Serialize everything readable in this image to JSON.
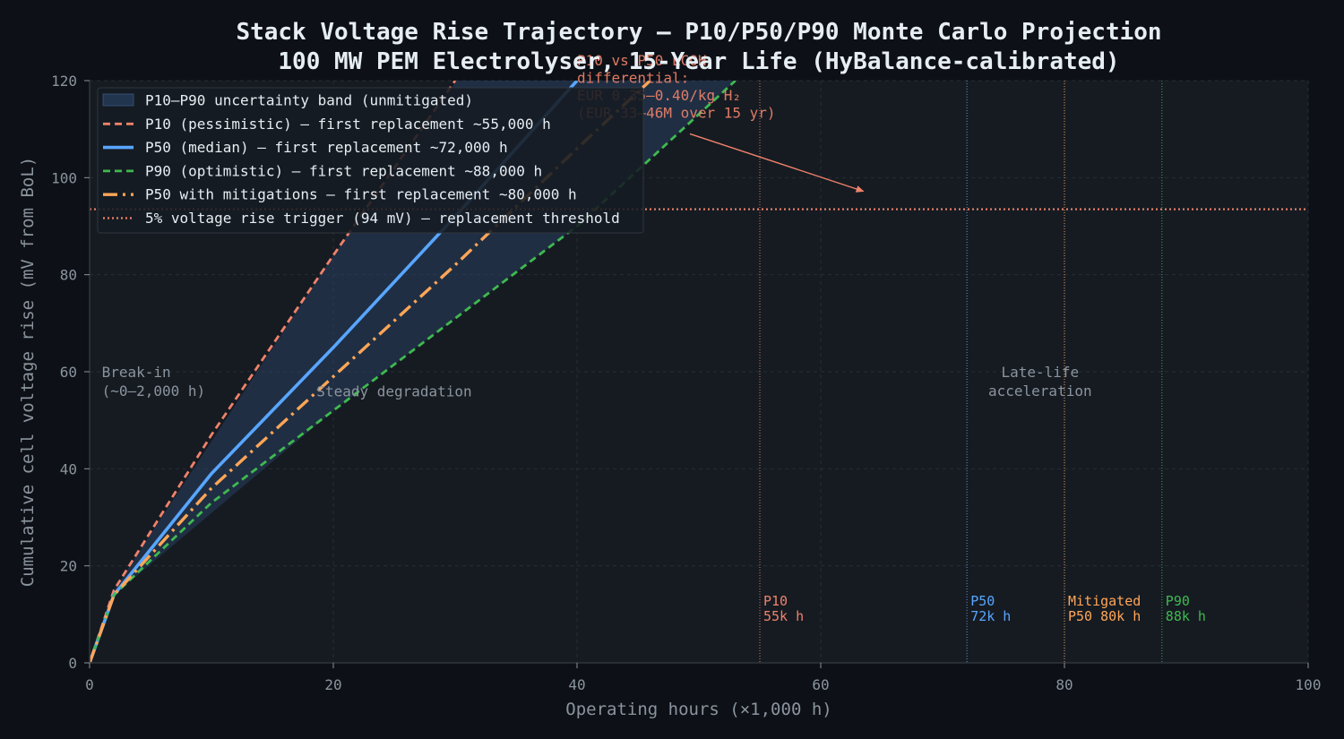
{
  "chart_data": {
    "type": "line",
    "title": "Stack Voltage Rise Trajectory — P10/P50/P90 Monte Carlo Projection",
    "subtitle": "100 MW PEM Electrolyser, 15-Year Life (HyBalance-calibrated)",
    "xlabel": "Operating hours (×1,000 h)",
    "ylabel": "Cumulative cell voltage rise (mV from BoL)",
    "xlim": [
      0,
      100
    ],
    "ylim": [
      0,
      120
    ],
    "xticks": [
      0,
      20,
      40,
      60,
      80,
      100
    ],
    "yticks": [
      0,
      20,
      40,
      60,
      80,
      100,
      120
    ],
    "grid": true,
    "legend_position": "top-left",
    "band": {
      "name": "P10–P90 uncertainty band (unmitigated)",
      "color": "#2d4a73",
      "x": [
        0,
        2,
        20,
        40,
        53,
        54
      ],
      "lower": [
        0,
        14,
        52,
        90,
        120,
        120
      ],
      "upper": [
        0,
        15,
        84,
        155,
        200,
        200
      ]
    },
    "series": [
      {
        "name": "P10 (pessimistic) — first replacement ~55,000 h",
        "color": "#f0826a",
        "dash": "8,5",
        "width": 2.8,
        "x": [
          0,
          2,
          10,
          20,
          30
        ],
        "values": [
          0,
          15,
          47,
          84,
          120
        ]
      },
      {
        "name": "P50 (median) — first replacement ~72,000 h",
        "color": "#58a6ff",
        "dash": "",
        "width": 3.6,
        "x": [
          0,
          2,
          10,
          20,
          30,
          40
        ],
        "values": [
          0,
          14,
          39,
          65,
          92,
          120
        ]
      },
      {
        "name": "P90 (optimistic) — first replacement ~88,000 h",
        "color": "#3fb950",
        "dash": "8,5",
        "width": 2.8,
        "x": [
          0,
          2,
          10,
          20,
          30,
          40,
          53
        ],
        "values": [
          0,
          14,
          33,
          52,
          71,
          90,
          120
        ]
      },
      {
        "name": "P50 with mitigations — first replacement ~80,000 h",
        "color": "#ffa657",
        "dash": "16,6,3,6",
        "width": 3.4,
        "x": [
          0,
          2,
          10,
          20,
          30,
          40,
          46
        ],
        "values": [
          0,
          14,
          36,
          59,
          82,
          106,
          120
        ]
      },
      {
        "name": "5% voltage rise trigger (94 mV) — replacement threshold",
        "color": "#f0826a",
        "dash": "2,3",
        "width": 2.2,
        "x": [
          0,
          100
        ],
        "values": [
          93.5,
          93.5
        ]
      }
    ],
    "markers": [
      {
        "x": 55,
        "label1": "P10",
        "label2": "55k h",
        "color": "#f0826a"
      },
      {
        "x": 72,
        "label1": "P50",
        "label2": "72k h",
        "color": "#58a6ff"
      },
      {
        "x": 80,
        "label1": "Mitigated",
        "label2": "P50 80k h",
        "color": "#ffa657"
      },
      {
        "x": 88,
        "label1": "P90",
        "label2": "88k h",
        "color": "#3fb950"
      }
    ],
    "phases": [
      {
        "x": 1,
        "y": 60,
        "anchor": "start",
        "line1": "Break-in",
        "line2": "(~0–2,000 h)"
      },
      {
        "x": 25,
        "y": 56,
        "anchor": "middle",
        "line1": "Steady degradation",
        "line2": ""
      },
      {
        "x": 78,
        "y": 60,
        "anchor": "middle",
        "line1": "Late-life",
        "line2": "acceleration"
      }
    ],
    "annotation": {
      "lines": [
        "P10 vs P50 LCOH",
        "differential:",
        "EUR 0.35–0.40/kg H₂",
        "(EUR 33–46M over 15 yr)"
      ],
      "x": 40,
      "y": 125,
      "arrow_from": [
        50,
        110.5
      ],
      "arrow_to": [
        63.5,
        97.2
      ]
    }
  }
}
